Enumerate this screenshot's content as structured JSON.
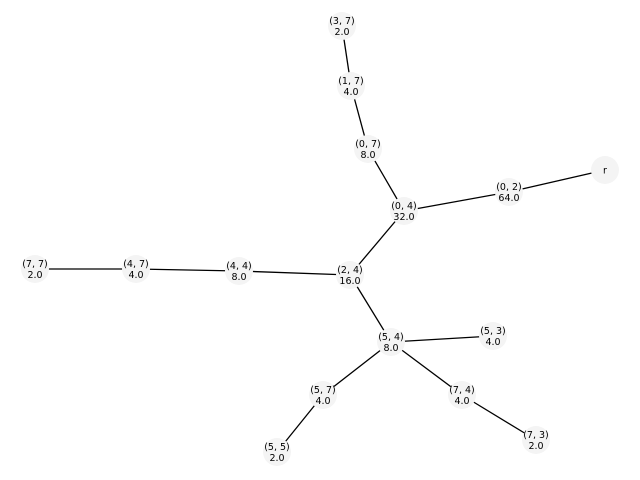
{
  "graph": {
    "type": "tree",
    "root": "r",
    "nodes": [
      {
        "id": "r",
        "lines": [
          "r"
        ]
      },
      {
        "id": "0,2",
        "lines": [
          "(0, 2)",
          "64.0"
        ]
      },
      {
        "id": "0,4",
        "lines": [
          "(0, 4)",
          "32.0"
        ]
      },
      {
        "id": "0,7",
        "lines": [
          "(0, 7)",
          "8.0"
        ]
      },
      {
        "id": "1,7",
        "lines": [
          "(1, 7)",
          "4.0"
        ]
      },
      {
        "id": "3,7",
        "lines": [
          "(3, 7)",
          "2.0"
        ]
      },
      {
        "id": "2,4",
        "lines": [
          "(2, 4)",
          "16.0"
        ]
      },
      {
        "id": "4,4",
        "lines": [
          "(4, 4)",
          "8.0"
        ]
      },
      {
        "id": "4,7",
        "lines": [
          "(4, 7)",
          "4.0"
        ]
      },
      {
        "id": "7,7",
        "lines": [
          "(7, 7)",
          "2.0"
        ]
      },
      {
        "id": "5,4",
        "lines": [
          "(5, 4)",
          "8.0"
        ]
      },
      {
        "id": "5,3",
        "lines": [
          "(5, 3)",
          "4.0"
        ]
      },
      {
        "id": "7,4",
        "lines": [
          "(7, 4)",
          "4.0"
        ]
      },
      {
        "id": "7,3",
        "lines": [
          "(7, 3)",
          "2.0"
        ]
      },
      {
        "id": "5,7",
        "lines": [
          "(5, 7)",
          "4.0"
        ]
      },
      {
        "id": "5,5",
        "lines": [
          "(5, 5)",
          "2.0"
        ]
      }
    ],
    "edges": [
      [
        "r",
        "0,2"
      ],
      [
        "0,2",
        "0,4"
      ],
      [
        "0,4",
        "0,7"
      ],
      [
        "0,7",
        "1,7"
      ],
      [
        "1,7",
        "3,7"
      ],
      [
        "0,4",
        "2,4"
      ],
      [
        "2,4",
        "4,4"
      ],
      [
        "4,4",
        "4,7"
      ],
      [
        "4,7",
        "7,7"
      ],
      [
        "2,4",
        "5,4"
      ],
      [
        "5,4",
        "5,3"
      ],
      [
        "5,4",
        "7,4"
      ],
      [
        "7,4",
        "7,3"
      ],
      [
        "5,4",
        "5,7"
      ],
      [
        "5,7",
        "5,5"
      ]
    ]
  }
}
